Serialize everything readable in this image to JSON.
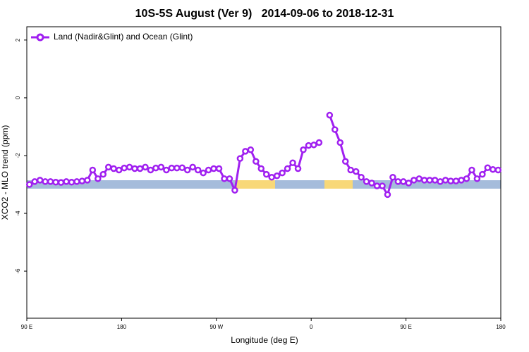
{
  "chart_data": {
    "type": "line",
    "title": "10S-5S August (Ver 9)   2014-09-06 to 2018-12-31",
    "xlabel": "Longitude (deg E)",
    "ylabel": "XCO2 - MLO trend (ppm)",
    "xlim": [
      90,
      540
    ],
    "ylim": [
      -7.63,
      2.46
    ],
    "xticks": [
      {
        "value": 90,
        "label": "90 E"
      },
      180,
      {
        "value": 270,
        "label": "90 W"
      },
      {
        "value": 360,
        "label": "0"
      },
      {
        "value": 450,
        "label": "90 E"
      },
      {
        "value": 540,
        "label": "180"
      }
    ],
    "yticks": [
      2,
      0,
      -2,
      -4,
      -6
    ],
    "legend": "top-left",
    "x": [
      92.5,
      97.5,
      102.5,
      107.5,
      112.5,
      117.5,
      122.5,
      127.5,
      132.5,
      137.5,
      142.5,
      147.5,
      152.5,
      157.5,
      162.5,
      167.5,
      172.5,
      177.5,
      182.5,
      187.5,
      192.5,
      197.5,
      202.5,
      207.5,
      212.5,
      217.5,
      222.5,
      227.5,
      232.5,
      237.5,
      242.5,
      247.5,
      252.5,
      257.5,
      262.5,
      267.5,
      272.5,
      277.5,
      282.5,
      287.5,
      292.5,
      297.5,
      302.5,
      307.5,
      312.5,
      317.5,
      322.5,
      327.5,
      332.5,
      337.5,
      342.5,
      347.5,
      352.5,
      357.5,
      362.5,
      367.5,
      372.5,
      377.5,
      382.5,
      387.5,
      392.5,
      397.5,
      402.5,
      407.5,
      412.5,
      417.5,
      422.5,
      427.5,
      432.5,
      437.5,
      442.5,
      447.5,
      452.5,
      457.5,
      462.5,
      467.5,
      472.5,
      477.5,
      482.5,
      487.5,
      492.5,
      497.5,
      502.5,
      507.5,
      512.5,
      517.5,
      522.5,
      527.5,
      532.5,
      537.5
    ],
    "series": [
      {
        "name": "Land (Nadir&Glint) and Ocean (Glint)",
        "color": "#a020f0",
        "values": [
          -3.0,
          -2.9,
          -2.85,
          -2.9,
          -2.9,
          -2.92,
          -2.93,
          -2.9,
          -2.92,
          -2.9,
          -2.88,
          -2.85,
          -2.5,
          -2.8,
          -2.65,
          -2.4,
          -2.45,
          -2.5,
          -2.43,
          -2.4,
          -2.45,
          -2.45,
          -2.4,
          -2.5,
          -2.43,
          -2.4,
          -2.5,
          -2.43,
          -2.43,
          -2.42,
          -2.5,
          -2.4,
          -2.5,
          -2.6,
          -2.5,
          -2.45,
          -2.45,
          -2.8,
          -2.8,
          -3.2,
          -2.1,
          -1.85,
          -1.8,
          -2.2,
          -2.45,
          -2.65,
          -2.75,
          -2.7,
          -2.6,
          -2.45,
          -2.25,
          -2.45,
          -1.8,
          -1.65,
          -1.63,
          -1.55,
          null,
          -0.6,
          -1.1,
          -1.55,
          -2.2,
          -2.5,
          -2.55,
          -2.75,
          -2.9,
          -2.95,
          -3.05,
          -3.05,
          -3.35,
          -2.75,
          -2.9,
          -2.9,
          -2.95,
          -2.85,
          -2.8,
          -2.85,
          -2.85,
          -2.85,
          -2.9,
          -2.85,
          -2.88,
          -2.88,
          -2.85,
          -2.8,
          -2.5,
          -2.8,
          -2.65,
          -2.42,
          -2.48,
          -2.5
        ]
      }
    ]
  }
}
